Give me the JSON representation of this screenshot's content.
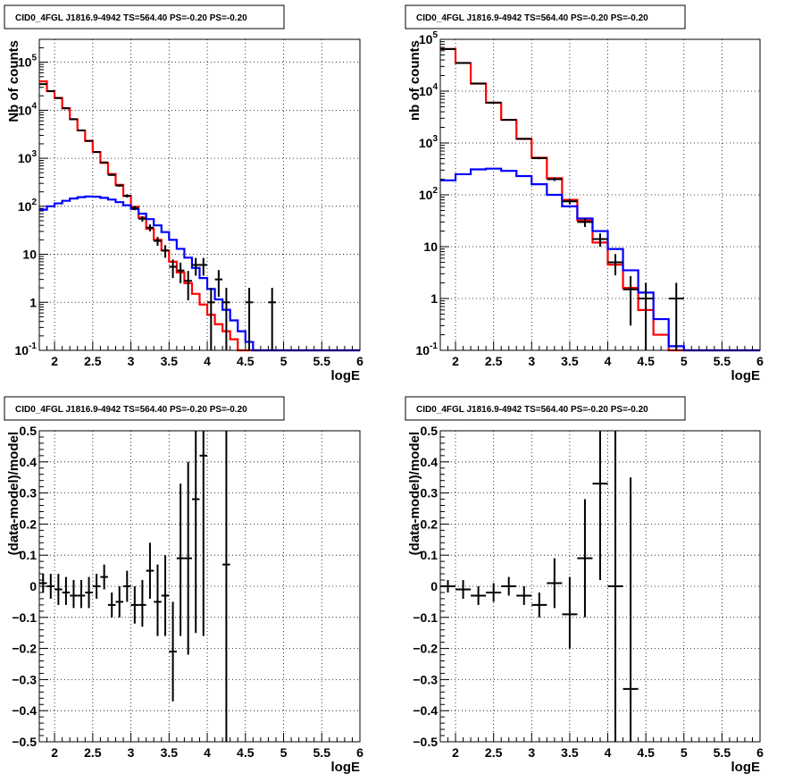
{
  "chart_data": [
    {
      "type": "line",
      "panel": "top-left",
      "title": "CID0_4FGL J1816.9-4942 TS=564.40 PS=-0.20 PS=-0.20",
      "xlabel": "logE",
      "ylabel": "Nb of counts",
      "xlim": [
        1.8,
        6.0
      ],
      "ylim": [
        0.1,
        300000
      ],
      "yscale": "log",
      "grid": true,
      "x_ticks": [
        "2",
        "2.5",
        "3",
        "3.5",
        "4",
        "4.5",
        "5",
        "5.5",
        "6"
      ],
      "y_ticks": [
        "10^-1",
        "1",
        "10",
        "10^2",
        "10^3",
        "10^4",
        "10^5"
      ],
      "bin_edges": [
        1.8,
        1.9,
        2.0,
        2.1,
        2.2,
        2.3,
        2.4,
        2.5,
        2.6,
        2.7,
        2.8,
        2.9,
        3.0,
        3.1,
        3.2,
        3.3,
        3.4,
        3.5,
        3.6,
        3.7,
        3.8,
        3.9,
        4.0,
        4.1,
        4.2,
        4.3,
        4.4,
        4.5,
        4.6,
        4.7,
        4.8,
        4.9,
        5.0,
        5.1,
        5.2,
        5.3,
        5.4,
        5.5,
        5.6,
        5.7,
        5.8,
        5.9,
        6.0
      ],
      "series": [
        {
          "color": "#ff0000",
          "style": "step",
          "values": [
            40000,
            25000,
            18000,
            11000,
            6500,
            3800,
            2300,
            1350,
            800,
            470,
            280,
            165,
            98,
            58,
            34,
            20,
            12,
            7,
            4.2,
            2.5,
            1.5,
            0.9,
            0.55,
            0.35,
            0.25,
            0.17,
            0.1,
            0.1,
            0.1,
            0.1,
            0.1,
            0.1,
            0.1,
            0.1,
            0.1,
            0.1,
            0.1,
            0.1,
            0.1,
            0.1,
            0.1,
            0.1
          ]
        },
        {
          "color": "#0000ff",
          "style": "step",
          "values": [
            85,
            100,
            115,
            130,
            145,
            155,
            160,
            158,
            150,
            138,
            122,
            105,
            88,
            70,
            54,
            40,
            29,
            20,
            13,
            8.5,
            5.2,
            3.2,
            1.9,
            1.15,
            0.7,
            0.42,
            0.25,
            0.15,
            0.1,
            0.1,
            0.1,
            0.1,
            0.1,
            0.1,
            0.1,
            0.1,
            0.1,
            0.1,
            0.1,
            0.1,
            0.1,
            0.1
          ]
        }
      ],
      "points": [
        {
          "x": 1.85,
          "y": 35000,
          "lo": 34600,
          "hi": 35400
        },
        {
          "x": 1.95,
          "y": 25000,
          "lo": 24700,
          "hi": 25300
        },
        {
          "x": 2.05,
          "y": 18000,
          "lo": 17750,
          "hi": 18250
        },
        {
          "x": 2.15,
          "y": 11000,
          "lo": 10800,
          "hi": 11200
        },
        {
          "x": 2.25,
          "y": 6500,
          "lo": 6400,
          "hi": 6600
        },
        {
          "x": 2.35,
          "y": 3800,
          "lo": 3740,
          "hi": 3860
        },
        {
          "x": 2.45,
          "y": 2300,
          "lo": 2250,
          "hi": 2350
        },
        {
          "x": 2.55,
          "y": 1350,
          "lo": 1310,
          "hi": 1390
        },
        {
          "x": 2.65,
          "y": 820,
          "lo": 790,
          "hi": 850
        },
        {
          "x": 2.75,
          "y": 450,
          "lo": 430,
          "hi": 470
        },
        {
          "x": 2.85,
          "y": 270,
          "lo": 254,
          "hi": 286
        },
        {
          "x": 2.95,
          "y": 165,
          "lo": 152,
          "hi": 178
        },
        {
          "x": 3.05,
          "y": 92,
          "lo": 83,
          "hi": 101
        },
        {
          "x": 3.15,
          "y": 55,
          "lo": 48,
          "hi": 62
        },
        {
          "x": 3.25,
          "y": 36,
          "lo": 30,
          "hi": 42
        },
        {
          "x": 3.35,
          "y": 19,
          "lo": 15,
          "hi": 23
        },
        {
          "x": 3.45,
          "y": 12,
          "lo": 8.5,
          "hi": 15.5
        },
        {
          "x": 3.55,
          "y": 5.5,
          "lo": 3.2,
          "hi": 7.8
        },
        {
          "x": 3.65,
          "y": 4.6,
          "lo": 2.5,
          "hi": 6.7
        },
        {
          "x": 3.75,
          "y": 2.8,
          "lo": 1.1,
          "hi": 4.5
        },
        {
          "x": 3.85,
          "y": 6,
          "lo": 3.6,
          "hi": 8.4
        },
        {
          "x": 3.95,
          "y": 6,
          "lo": 3.6,
          "hi": 8.4
        },
        {
          "x": 4.05,
          "y": 1,
          "lo": 0.1,
          "hi": 2
        },
        {
          "x": 4.15,
          "y": 3,
          "lo": 1.3,
          "hi": 4.7
        },
        {
          "x": 4.25,
          "y": 1,
          "lo": 0.1,
          "hi": 2
        },
        {
          "x": 4.55,
          "y": 1,
          "lo": 0.1,
          "hi": 2
        },
        {
          "x": 4.85,
          "y": 1,
          "lo": 0.1,
          "hi": 2
        }
      ]
    },
    {
      "type": "line",
      "panel": "top-right",
      "title": "CID0_4FGL J1816.9-4942 TS=564.40 PS=-0.20 PS=-0.20",
      "xlabel": "logE",
      "ylabel": "nb of counts",
      "xlim": [
        1.8,
        6.0
      ],
      "ylim": [
        0.1,
        100000
      ],
      "yscale": "log",
      "grid": true,
      "x_ticks": [
        "2",
        "2.5",
        "3",
        "3.5",
        "4",
        "4.5",
        "5",
        "5.5",
        "6"
      ],
      "y_ticks": [
        "10^-1",
        "1",
        "10",
        "10^2",
        "10^3",
        "10^4",
        "10^5"
      ],
      "bin_edges": [
        1.8,
        2.0,
        2.2,
        2.4,
        2.6,
        2.8,
        3.0,
        3.2,
        3.4,
        3.6,
        3.8,
        4.0,
        4.2,
        4.4,
        4.6,
        4.8,
        5.0,
        5.2,
        5.4,
        5.6,
        5.8,
        6.0
      ],
      "series": [
        {
          "color": "#ff0000",
          "style": "step",
          "values": [
            65000,
            35000,
            14000,
            6000,
            2800,
            1200,
            520,
            210,
            80,
            32,
            12,
            4.5,
            1.6,
            0.6,
            0.2,
            0.1,
            0.1,
            0.1,
            0.1,
            0.1,
            0.1
          ]
        },
        {
          "color": "#0000ff",
          "style": "step",
          "values": [
            190,
            250,
            310,
            320,
            290,
            230,
            160,
            100,
            60,
            35,
            20,
            9,
            3.5,
            1.3,
            0.4,
            0.12,
            0.1,
            0.1,
            0.1,
            0.1,
            0.1
          ]
        }
      ],
      "points": [
        {
          "x": 1.9,
          "y": 65000,
          "lo": 64500,
          "hi": 65500
        },
        {
          "x": 2.1,
          "y": 35000,
          "lo": 34600,
          "hi": 35400
        },
        {
          "x": 2.3,
          "y": 14000,
          "lo": 13800,
          "hi": 14200
        },
        {
          "x": 2.5,
          "y": 6000,
          "lo": 5900,
          "hi": 6100
        },
        {
          "x": 2.7,
          "y": 2800,
          "lo": 2740,
          "hi": 2860
        },
        {
          "x": 2.9,
          "y": 1200,
          "lo": 1160,
          "hi": 1240
        },
        {
          "x": 3.1,
          "y": 510,
          "lo": 485,
          "hi": 535
        },
        {
          "x": 3.3,
          "y": 200,
          "lo": 185,
          "hi": 215
        },
        {
          "x": 3.5,
          "y": 75,
          "lo": 66,
          "hi": 84
        },
        {
          "x": 3.7,
          "y": 30,
          "lo": 24,
          "hi": 36
        },
        {
          "x": 3.9,
          "y": 14,
          "lo": 10,
          "hi": 18
        },
        {
          "x": 4.1,
          "y": 5,
          "lo": 2.8,
          "hi": 7.2
        },
        {
          "x": 4.3,
          "y": 1.5,
          "lo": 0.3,
          "hi": 2.7
        },
        {
          "x": 4.5,
          "y": 1,
          "lo": 0.1,
          "hi": 2
        },
        {
          "x": 4.9,
          "y": 1,
          "lo": 0.1,
          "hi": 2
        }
      ]
    },
    {
      "type": "scatter",
      "panel": "bottom-left",
      "title": "CID0_4FGL J1816.9-4942 TS=564.40 PS=-0.20 PS=-0.20",
      "xlabel": "logE",
      "ylabel": "(data-model)/model",
      "xlim": [
        1.8,
        6.0
      ],
      "ylim": [
        -0.5,
        0.5
      ],
      "yscale": "linear",
      "grid": true,
      "x_ticks": [
        "2",
        "2.5",
        "3",
        "3.5",
        "4",
        "4.5",
        "5",
        "5.5",
        "6"
      ],
      "y_ticks": [
        "−0.5",
        "−0.4",
        "−0.3",
        "−0.2",
        "−0.1",
        "0",
        "0.1",
        "0.2",
        "0.3",
        "0.4",
        "0.5"
      ],
      "xerr": 0.05,
      "points": [
        {
          "x": 1.85,
          "y": 0.01,
          "lo": -0.02,
          "hi": 0.04
        },
        {
          "x": 1.95,
          "y": 0.0,
          "lo": -0.04,
          "hi": 0.04
        },
        {
          "x": 2.05,
          "y": -0.01,
          "lo": -0.06,
          "hi": 0.04
        },
        {
          "x": 2.15,
          "y": -0.02,
          "lo": -0.06,
          "hi": 0.03
        },
        {
          "x": 2.25,
          "y": -0.03,
          "lo": -0.07,
          "hi": 0.02
        },
        {
          "x": 2.35,
          "y": -0.03,
          "lo": -0.07,
          "hi": 0.02
        },
        {
          "x": 2.45,
          "y": -0.02,
          "lo": -0.07,
          "hi": 0.03
        },
        {
          "x": 2.55,
          "y": 0.0,
          "lo": -0.04,
          "hi": 0.04
        },
        {
          "x": 2.65,
          "y": 0.03,
          "lo": -0.01,
          "hi": 0.07
        },
        {
          "x": 2.75,
          "y": -0.06,
          "lo": -0.1,
          "hi": -0.02
        },
        {
          "x": 2.85,
          "y": -0.05,
          "lo": -0.1,
          "hi": 0.0
        },
        {
          "x": 2.95,
          "y": 0.0,
          "lo": -0.05,
          "hi": 0.05
        },
        {
          "x": 3.05,
          "y": -0.06,
          "lo": -0.12,
          "hi": 0.0
        },
        {
          "x": 3.15,
          "y": -0.06,
          "lo": -0.13,
          "hi": 0.02
        },
        {
          "x": 3.25,
          "y": 0.05,
          "lo": -0.04,
          "hi": 0.14
        },
        {
          "x": 3.35,
          "y": -0.05,
          "lo": -0.16,
          "hi": 0.07
        },
        {
          "x": 3.45,
          "y": -0.03,
          "lo": -0.16,
          "hi": 0.1
        },
        {
          "x": 3.55,
          "y": -0.21,
          "lo": -0.37,
          "hi": -0.05
        },
        {
          "x": 3.65,
          "y": 0.09,
          "lo": -0.16,
          "hi": 0.33
        },
        {
          "x": 3.75,
          "y": 0.09,
          "lo": -0.22,
          "hi": 0.4
        },
        {
          "x": 3.85,
          "y": 0.28,
          "lo": -0.15,
          "hi": 0.5
        },
        {
          "x": 3.95,
          "y": 0.42,
          "lo": -0.16,
          "hi": 0.5
        },
        {
          "x": 4.25,
          "y": 0.07,
          "lo": -0.5,
          "hi": 0.5
        }
      ]
    },
    {
      "type": "scatter",
      "panel": "bottom-right",
      "title": "CID0_4FGL J1816.9-4942 TS=564.40 PS=-0.20 PS=-0.20",
      "xlabel": "logE",
      "ylabel": "(data-model)/model",
      "xlim": [
        1.8,
        6.0
      ],
      "ylim": [
        -0.5,
        0.5
      ],
      "yscale": "linear",
      "grid": true,
      "x_ticks": [
        "2",
        "2.5",
        "3",
        "3.5",
        "4",
        "4.5",
        "5",
        "5.5",
        "6"
      ],
      "y_ticks": [
        "−0.5",
        "−0.4",
        "−0.3",
        "−0.2",
        "−0.1",
        "0",
        "0.1",
        "0.2",
        "0.3",
        "0.4",
        "0.5"
      ],
      "xerr": 0.1,
      "points": [
        {
          "x": 1.9,
          "y": 0.0,
          "lo": -0.02,
          "hi": 0.02
        },
        {
          "x": 2.1,
          "y": -0.01,
          "lo": -0.04,
          "hi": 0.02
        },
        {
          "x": 2.3,
          "y": -0.03,
          "lo": -0.06,
          "hi": 0.0
        },
        {
          "x": 2.5,
          "y": -0.02,
          "lo": -0.05,
          "hi": 0.01
        },
        {
          "x": 2.7,
          "y": 0.0,
          "lo": -0.03,
          "hi": 0.03
        },
        {
          "x": 2.9,
          "y": -0.03,
          "lo": -0.06,
          "hi": 0.0
        },
        {
          "x": 3.1,
          "y": -0.06,
          "lo": -0.1,
          "hi": -0.02
        },
        {
          "x": 3.3,
          "y": 0.01,
          "lo": -0.07,
          "hi": 0.09
        },
        {
          "x": 3.5,
          "y": -0.09,
          "lo": -0.2,
          "hi": 0.03
        },
        {
          "x": 3.7,
          "y": 0.09,
          "lo": -0.1,
          "hi": 0.28
        },
        {
          "x": 3.9,
          "y": 0.33,
          "lo": 0.02,
          "hi": 0.5
        },
        {
          "x": 4.1,
          "y": 0.0,
          "lo": -0.5,
          "hi": 0.5
        },
        {
          "x": 4.3,
          "y": -0.33,
          "lo": -0.5,
          "hi": 0.35
        }
      ]
    }
  ]
}
